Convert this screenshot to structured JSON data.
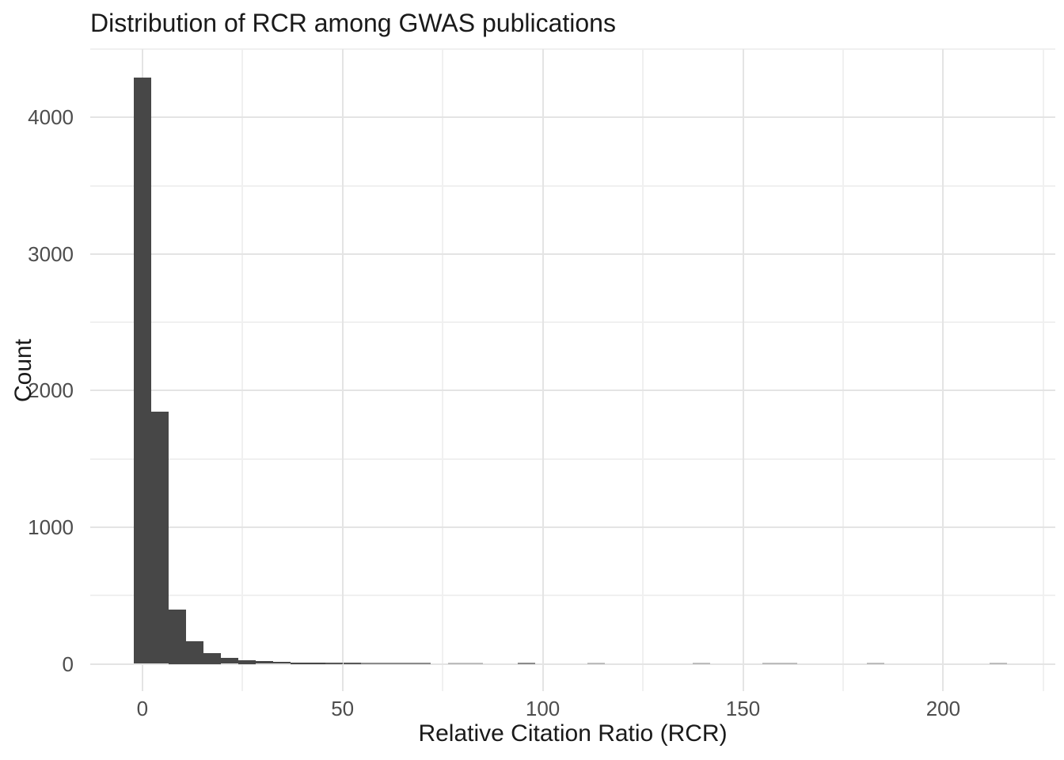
{
  "chart_data": {
    "type": "bar",
    "subtype": "histogram",
    "title": "Distribution of RCR among GWAS publications",
    "xlabel": "Relative Citation Ratio (RCR)",
    "ylabel": "Count",
    "x_ticks": [
      0,
      50,
      100,
      150,
      200
    ],
    "x_minor_ticks": [
      25,
      75,
      125,
      175,
      225
    ],
    "y_ticks": [
      0,
      1000,
      2000,
      3000,
      4000
    ],
    "y_minor_ticks": [
      500,
      1500,
      2500,
      3500,
      4500
    ],
    "xlim": [
      -13,
      228
    ],
    "ylim": [
      -200,
      4500
    ],
    "binwidth": 4.36,
    "legend": "none",
    "grid": "on",
    "bins": [
      {
        "x": 0.0,
        "count": 4290
      },
      {
        "x": 4.36,
        "count": 1845
      },
      {
        "x": 8.72,
        "count": 400
      },
      {
        "x": 13.08,
        "count": 165
      },
      {
        "x": 17.45,
        "count": 81
      },
      {
        "x": 21.81,
        "count": 46
      },
      {
        "x": 26.17,
        "count": 29
      },
      {
        "x": 30.53,
        "count": 18
      },
      {
        "x": 34.89,
        "count": 13
      },
      {
        "x": 39.25,
        "count": 8
      },
      {
        "x": 43.61,
        "count": 5
      },
      {
        "x": 47.98,
        "count": 3
      },
      {
        "x": 52.34,
        "count": 3
      },
      {
        "x": 56.7,
        "count": 2
      },
      {
        "x": 61.06,
        "count": 2
      },
      {
        "x": 65.42,
        "count": 2
      },
      {
        "x": 69.78,
        "count": 2
      },
      {
        "x": 78.5,
        "count": 1
      },
      {
        "x": 82.87,
        "count": 1
      },
      {
        "x": 95.95,
        "count": 2
      },
      {
        "x": 113.4,
        "count": 1
      },
      {
        "x": 139.57,
        "count": 1
      },
      {
        "x": 156.99,
        "count": 1
      },
      {
        "x": 161.35,
        "count": 1
      },
      {
        "x": 183.16,
        "count": 1
      },
      {
        "x": 213.68,
        "count": 1
      }
    ],
    "colors": {
      "bar_fill": "#474747",
      "grid_major": "#E4E4E4",
      "grid_minor": "#F0F0F0",
      "tick_label": "#4D4D4D",
      "title_text": "#1a1a1a",
      "background": "#FFFFFF"
    }
  }
}
